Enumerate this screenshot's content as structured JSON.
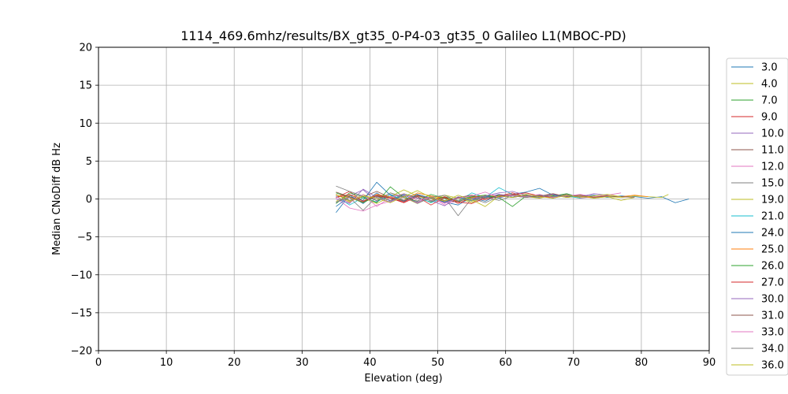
{
  "chart_data": {
    "type": "line",
    "title": "1114_469.6mhz/results/BX_gt35_0-P4-03_gt35_0 Galileo L1(MBOC-PD)",
    "xlabel": "Elevation (deg)",
    "ylabel": "Median CNoDiff dB Hz",
    "xlim": [
      0,
      90
    ],
    "ylim": [
      -20,
      20
    ],
    "xticks": [
      0,
      10,
      20,
      30,
      40,
      50,
      60,
      70,
      80,
      90
    ],
    "yticks": [
      -20,
      -15,
      -10,
      -5,
      0,
      5,
      10,
      15,
      20
    ],
    "grid": true,
    "legend_position": "right-outside",
    "series": [
      {
        "name": "3.0",
        "color": "#1f77b4",
        "x": [
          35,
          37,
          39,
          41,
          43,
          45,
          47,
          49,
          51,
          53,
          55,
          57,
          59,
          61,
          63,
          65,
          67,
          69,
          71,
          73,
          75,
          77,
          79,
          81,
          83,
          85,
          87
        ],
        "y": [
          -1.8,
          0.5,
          -0.6,
          0.8,
          -0.3,
          0.6,
          -0.5,
          0.3,
          -0.4,
          -0.8,
          0.2,
          -0.3,
          0.6,
          0.2,
          0.5,
          0.4,
          0.1,
          0.6,
          0.3,
          0.5,
          0.2,
          0.4,
          0.3,
          0.1,
          0.3,
          -0.5,
          0.0
        ]
      },
      {
        "name": "4.0",
        "color": "#bcbd22",
        "x": [
          35,
          37,
          39,
          41,
          43,
          45,
          47,
          49,
          51,
          53,
          55,
          57,
          59,
          61,
          63,
          65,
          67,
          69,
          71,
          73,
          75,
          77,
          79,
          81,
          83,
          84
        ],
        "y": [
          0.3,
          -0.4,
          0.6,
          -0.2,
          0.8,
          0.2,
          -0.6,
          0.4,
          -0.2,
          0.1,
          -0.5,
          0.3,
          0.2,
          0.6,
          0.4,
          0.1,
          0.5,
          0.2,
          0.4,
          0.1,
          0.3,
          0.2,
          0.4,
          0.3,
          0.2,
          0.6
        ]
      },
      {
        "name": "7.0",
        "color": "#2ca02c",
        "x": [
          35,
          37,
          39,
          41,
          43,
          45,
          47,
          49,
          51,
          53,
          55,
          57,
          59,
          61,
          63,
          65,
          67,
          69,
          71
        ],
        "y": [
          0.8,
          0.2,
          -0.5,
          0.4,
          -0.2,
          0.7,
          0.1,
          -0.4,
          0.3,
          -0.2,
          0.4,
          0.1,
          0.5,
          0.2,
          0.6,
          0.3,
          0.4,
          0.7,
          0.2
        ]
      },
      {
        "name": "9.0",
        "color": "#d62728",
        "x": [
          35,
          37,
          39,
          41,
          43,
          45,
          47,
          49,
          51,
          53,
          55,
          57,
          59,
          61,
          63,
          65,
          67,
          69
        ],
        "y": [
          0.2,
          1.0,
          -0.3,
          0.6,
          0.1,
          -0.4,
          0.5,
          -0.2,
          0.3,
          -0.6,
          0.2,
          -0.1,
          0.4,
          0.8,
          0.3,
          0.5,
          0.2,
          0.6
        ]
      },
      {
        "name": "10.0",
        "color": "#9467bd",
        "x": [
          35,
          37,
          39,
          41,
          43,
          45,
          47,
          49,
          51,
          53,
          55,
          57,
          59,
          61,
          63,
          65,
          67,
          69,
          71,
          73
        ],
        "y": [
          -0.5,
          0.4,
          1.2,
          -0.3,
          0.6,
          0.2,
          -0.4,
          0.3,
          -0.5,
          0.1,
          -0.3,
          0.2,
          0.6,
          0.4,
          0.2,
          0.5,
          0.3,
          0.4,
          0.1,
          0.3
        ]
      },
      {
        "name": "11.0",
        "color": "#8c564b",
        "x": [
          35,
          37,
          39,
          41,
          43,
          45,
          47,
          49,
          51,
          53,
          55,
          57,
          59,
          61,
          63,
          65,
          67,
          69,
          71,
          73,
          75
        ],
        "y": [
          0.6,
          -0.2,
          0.3,
          1.0,
          0.2,
          -0.3,
          0.6,
          0.1,
          -0.2,
          -0.4,
          0.3,
          0.1,
          0.4,
          0.2,
          0.5,
          0.3,
          0.6,
          0.2,
          0.4,
          0.3,
          0.5
        ]
      },
      {
        "name": "12.0",
        "color": "#e377c2",
        "x": [
          35,
          37,
          39,
          41,
          43,
          45,
          47,
          49,
          51,
          53,
          55,
          57,
          59,
          61,
          63,
          65,
          67,
          69,
          71,
          73,
          75,
          77
        ],
        "y": [
          0.1,
          -1.2,
          -1.6,
          -0.8,
          -0.3,
          0.2,
          -0.5,
          0.3,
          -0.8,
          -0.2,
          0.1,
          0.4,
          0.2,
          0.6,
          0.3,
          0.5,
          0.2,
          0.4,
          0.6,
          0.3,
          0.5,
          0.8
        ]
      },
      {
        "name": "15.0",
        "color": "#7f7f7f",
        "x": [
          35,
          37,
          39,
          41,
          43,
          45,
          47,
          49,
          51,
          53,
          55,
          57,
          59,
          61,
          63,
          65,
          67
        ],
        "y": [
          1.7,
          1.0,
          0.4,
          -0.2,
          0.8,
          0.3,
          0.6,
          -0.3,
          0.2,
          -2.2,
          0.1,
          -0.5,
          0.3,
          0.6,
          0.2,
          0.5,
          0.3
        ]
      },
      {
        "name": "19.0",
        "color": "#bcbd22",
        "x": [
          35,
          37,
          39,
          41,
          43,
          45,
          47,
          49,
          51,
          53,
          55,
          57,
          59,
          61,
          63,
          65,
          67,
          69,
          71,
          73,
          75,
          77,
          79
        ],
        "y": [
          -0.3,
          0.5,
          0.1,
          -0.6,
          0.3,
          1.2,
          0.4,
          -0.2,
          0.5,
          0.1,
          -0.3,
          0.4,
          0.2,
          0.6,
          0.3,
          0.1,
          0.5,
          0.2,
          0.4,
          0.1,
          0.3,
          -0.2,
          0.2
        ]
      },
      {
        "name": "21.0",
        "color": "#17becf",
        "x": [
          35,
          37,
          39,
          41,
          43,
          45,
          47,
          49,
          51,
          53,
          55,
          57,
          59,
          61,
          63,
          65,
          67,
          69,
          71
        ],
        "y": [
          0.4,
          -0.8,
          0.2,
          -0.4,
          0.6,
          -0.2,
          0.3,
          -0.5,
          0.1,
          -0.3,
          0.8,
          0.2,
          1.5,
          0.6,
          0.3,
          0.5,
          0.2,
          0.4,
          0.1
        ]
      },
      {
        "name": "24.0",
        "color": "#1f77b4",
        "x": [
          35,
          37,
          39,
          41,
          43,
          45,
          47,
          49,
          51,
          53,
          55,
          57,
          59,
          61,
          63,
          65,
          67,
          69
        ],
        "y": [
          -1.0,
          0.3,
          -0.2,
          2.2,
          0.5,
          -0.3,
          0.6,
          0.1,
          -0.4,
          0.2,
          -0.2,
          0.4,
          0.1,
          0.6,
          0.9,
          1.4,
          0.5,
          0.3
        ]
      },
      {
        "name": "25.0",
        "color": "#ff7f0e",
        "x": [
          35,
          37,
          39,
          41,
          43,
          45,
          47,
          49,
          51,
          53,
          55,
          57,
          59,
          61,
          63,
          65,
          67,
          69,
          71,
          73,
          75,
          77,
          79,
          81
        ],
        "y": [
          0.5,
          0.2,
          -0.4,
          0.6,
          0.3,
          -0.2,
          0.8,
          0.4,
          0.1,
          -0.3,
          0.2,
          0.5,
          0.3,
          0.6,
          0.2,
          0.4,
          0.1,
          0.5,
          0.3,
          0.2,
          0.4,
          0.3,
          0.5,
          0.3
        ]
      },
      {
        "name": "26.0",
        "color": "#2ca02c",
        "x": [
          35,
          37,
          39,
          41,
          43,
          45,
          47,
          49,
          51,
          53,
          55,
          57,
          59,
          61,
          63,
          65
        ],
        "y": [
          -0.6,
          0.8,
          0.3,
          -0.5,
          1.6,
          0.2,
          -0.3,
          0.6,
          0.1,
          -0.4,
          0.3,
          0.5,
          0.2,
          -1.0,
          0.4,
          0.2
        ]
      },
      {
        "name": "27.0",
        "color": "#d62728",
        "x": [
          35,
          37,
          39,
          41,
          43,
          45,
          47,
          49,
          51,
          53,
          55,
          57,
          59,
          61,
          63,
          65,
          67
        ],
        "y": [
          0.2,
          0.6,
          -0.3,
          0.4,
          0.1,
          -0.5,
          0.3,
          -0.8,
          0.2,
          -0.4,
          -0.6,
          0.1,
          0.3,
          0.6,
          0.8,
          0.4,
          0.2
        ]
      },
      {
        "name": "30.0",
        "color": "#9467bd",
        "x": [
          35,
          37,
          39,
          41,
          43,
          45,
          47,
          49,
          51,
          53,
          55,
          57,
          59,
          61,
          63,
          65,
          67,
          69,
          71,
          73,
          75
        ],
        "y": [
          0.0,
          -0.6,
          1.3,
          0.2,
          -0.4,
          0.5,
          0.1,
          -0.2,
          -0.9,
          0.3,
          -0.1,
          0.4,
          0.8,
          1.0,
          0.5,
          0.2,
          0.6,
          0.4,
          0.3,
          0.7,
          0.5
        ]
      },
      {
        "name": "31.0",
        "color": "#8c564b",
        "x": [
          35,
          37,
          39,
          41,
          43,
          45,
          47,
          49,
          51,
          53,
          55,
          57,
          59,
          61,
          63,
          65,
          67,
          69,
          71,
          73,
          75,
          77,
          79
        ],
        "y": [
          0.9,
          0.3,
          -0.4,
          0.5,
          0.2,
          -0.2,
          0.4,
          0.1,
          -0.3,
          0.2,
          0.5,
          0.1,
          0.3,
          0.6,
          0.2,
          0.4,
          0.7,
          0.3,
          0.5,
          0.2,
          0.4,
          0.3,
          0.2
        ]
      },
      {
        "name": "33.0",
        "color": "#e377c2",
        "x": [
          35,
          37,
          39,
          41,
          43,
          45,
          47,
          49,
          51,
          53,
          55,
          57,
          59,
          61,
          63,
          65,
          67,
          69
        ],
        "y": [
          0.3,
          -0.5,
          0.6,
          -1.0,
          0.2,
          0.7,
          -0.2,
          0.3,
          -0.6,
          0.1,
          0.4,
          0.9,
          0.2,
          0.5,
          0.3,
          0.6,
          0.2,
          0.4
        ]
      },
      {
        "name": "34.0",
        "color": "#7f7f7f",
        "x": [
          35,
          37,
          39,
          41,
          43,
          45,
          47,
          49,
          51,
          53,
          55,
          57,
          59,
          61,
          63,
          65,
          67,
          69,
          71
        ],
        "y": [
          -0.4,
          0.2,
          -1.5,
          0.3,
          -0.2,
          0.4,
          -0.6,
          0.2,
          0.5,
          -0.3,
          0.1,
          0.3,
          -0.2,
          0.4,
          0.2,
          0.5,
          0.3,
          0.6,
          0.2
        ]
      },
      {
        "name": "36.0",
        "color": "#bcbd22",
        "x": [
          35,
          37,
          39,
          41,
          43,
          45,
          47,
          49,
          51,
          53,
          55,
          57,
          59,
          61,
          63,
          65,
          67,
          69,
          71,
          73,
          75,
          77
        ],
        "y": [
          0.6,
          -0.3,
          0.4,
          0.1,
          -0.5,
          0.3,
          1.1,
          0.2,
          -0.3,
          0.5,
          -0.1,
          -1.0,
          0.4,
          0.2,
          0.6,
          0.3,
          0.1,
          0.5,
          0.2,
          0.4,
          0.6,
          0.3
        ]
      }
    ]
  }
}
